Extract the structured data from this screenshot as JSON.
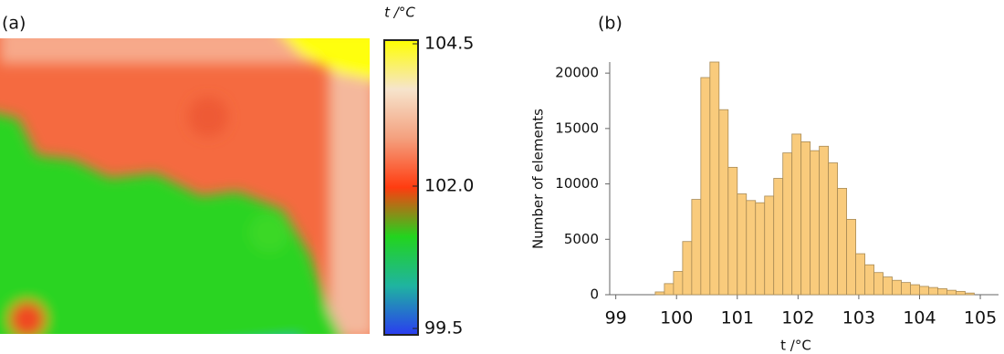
{
  "chart_data": [
    {
      "type": "thermal-map",
      "panel_label": "(a)",
      "colorbar_label": "t /°C",
      "clim": [
        99.5,
        104.5
      ],
      "cticks": [
        99.5,
        {
          "value": 102,
          "label": "102.0"
        },
        104.5
      ],
      "colormap": [
        "#2a3cf0",
        "#1fb4a0",
        "#22d41e",
        "#ff3c10",
        "#f4a07e",
        "#f6e4cc",
        "#ffff00"
      ]
    },
    {
      "type": "histogram",
      "panel_label": "(b)",
      "xlabel": "t /°C",
      "ylabel": "Number of elements",
      "bins": [
        99.65,
        99.8,
        99.95,
        100.1,
        100.25,
        100.4,
        100.55,
        100.7,
        100.85,
        101.0,
        101.15,
        101.3,
        101.45,
        101.6,
        101.75,
        101.9,
        102.05,
        102.2,
        102.35,
        102.5,
        102.65,
        102.8,
        102.95,
        103.1,
        103.25,
        103.4,
        103.55,
        103.7,
        103.85,
        104.0,
        104.15,
        104.3,
        104.45,
        104.6,
        104.75,
        104.9
      ],
      "values": [
        250,
        1000,
        2100,
        4800,
        8600,
        19600,
        21000,
        16700,
        11500,
        9100,
        8500,
        8300,
        8900,
        10500,
        12800,
        14500,
        13800,
        13000,
        13400,
        11900,
        9600,
        6800,
        3700,
        2700,
        2000,
        1600,
        1300,
        1100,
        900,
        750,
        650,
        550,
        400,
        300,
        150
      ],
      "color": "#f9cb7c",
      "xlim": [
        98.9,
        105.3
      ],
      "xticks": [
        99,
        100,
        101,
        102,
        103,
        104,
        105
      ],
      "ylim": [
        0,
        21000
      ],
      "yticks": [
        0,
        5000,
        10000,
        15000,
        20000
      ]
    }
  ]
}
